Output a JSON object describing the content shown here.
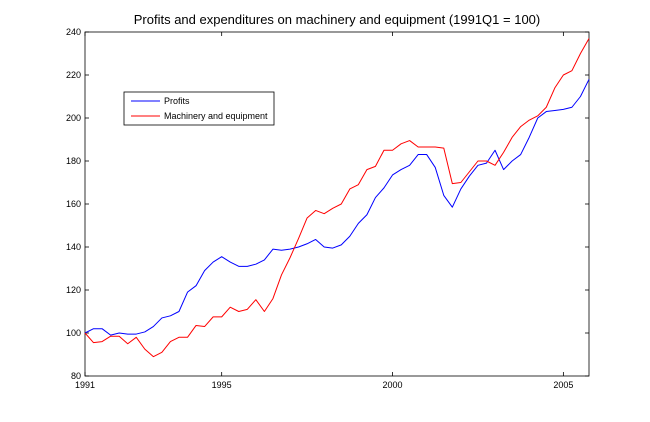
{
  "chart_data": {
    "type": "line",
    "title": "Profits and expenditures on machinery and equipment (1991Q1 = 100)",
    "xlabel": "",
    "ylabel": "",
    "xlim": [
      1991,
      2005.75
    ],
    "ylim": [
      80,
      240
    ],
    "x_ticks": [
      1991,
      1995,
      2000,
      2005
    ],
    "y_ticks": [
      80,
      100,
      120,
      140,
      160,
      180,
      200,
      220,
      240
    ],
    "x_start": 1991,
    "x_step": 0.25,
    "legend_position": "top-left",
    "series": [
      {
        "name": "Profits",
        "color": "#0000ff",
        "values": [
          100,
          102,
          102,
          99,
          100,
          99.5,
          99.5,
          100.5,
          103,
          107,
          108,
          110,
          119,
          122,
          129,
          133,
          135.5,
          133,
          131,
          131,
          132,
          134,
          139,
          138.5,
          139,
          140,
          141.5,
          143.5,
          140,
          139.5,
          141,
          145,
          151,
          155,
          163,
          167.5,
          173.5,
          176,
          178,
          183,
          183,
          177,
          164,
          158.5,
          167,
          173,
          178,
          179,
          185,
          176,
          180,
          183,
          191,
          200,
          203,
          203.5,
          204,
          205,
          210,
          218
        ]
      },
      {
        "name": "Machinery and equipment",
        "color": "#ff0000",
        "values": [
          100,
          95.5,
          96,
          98.5,
          98.5,
          95,
          98,
          92.5,
          89,
          91,
          96,
          98,
          98,
          103.5,
          103,
          107.5,
          107.5,
          112,
          110,
          111,
          115.5,
          110,
          116,
          127,
          135,
          144,
          153.5,
          157,
          155.5,
          158,
          160,
          167,
          169,
          176,
          177.5,
          185,
          185,
          188,
          189.5,
          186.5,
          186.5,
          186.5,
          186,
          169.5,
          170,
          175,
          180,
          180,
          178,
          184,
          191,
          196,
          199,
          201,
          205,
          214,
          220,
          222,
          230,
          237
        ]
      }
    ]
  }
}
